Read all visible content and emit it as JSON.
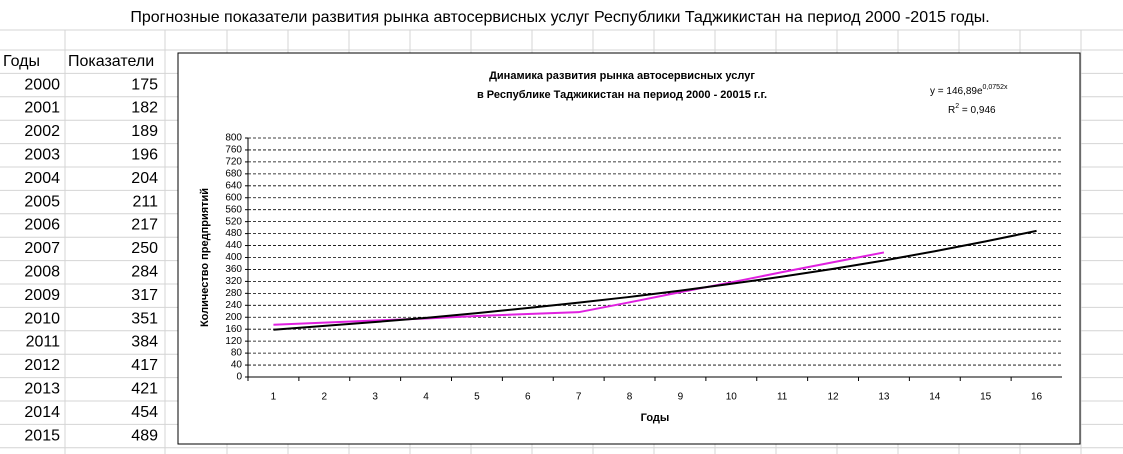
{
  "title": "Прогнозные показатели развития рынка автосервисных услуг Республики Таджикистан на период 2000 -2015 годы.",
  "table": {
    "headers": [
      "Годы",
      "Показатели"
    ],
    "rows": [
      [
        2000,
        175
      ],
      [
        2001,
        182
      ],
      [
        2002,
        189
      ],
      [
        2003,
        196
      ],
      [
        2004,
        204
      ],
      [
        2005,
        211
      ],
      [
        2006,
        217
      ],
      [
        2007,
        250
      ],
      [
        2008,
        284
      ],
      [
        2009,
        317
      ],
      [
        2010,
        351
      ],
      [
        2011,
        384
      ],
      [
        2012,
        417
      ],
      [
        2013,
        421
      ],
      [
        2014,
        454
      ],
      [
        2015,
        489
      ]
    ]
  },
  "chart_data": {
    "type": "line",
    "title": [
      "Динамика развития рынка автосервисных услуг",
      "в Республике Таджикистан на период 2000 - 20015 г.г."
    ],
    "x_label": "Годы",
    "y_label": "Количество предприятий",
    "trend_label": {
      "base": "y = 146,89e",
      "exponent": "0,0752x"
    },
    "r2_label": {
      "base": "R",
      "exponent": "2",
      "rest": " = 0,946"
    },
    "categories": [
      1,
      2,
      3,
      4,
      5,
      6,
      7,
      8,
      9,
      10,
      11,
      12,
      13,
      14,
      15,
      16
    ],
    "series": [
      {
        "color": "#e020e0",
        "values": [
          175,
          182,
          189,
          196,
          204,
          211,
          217,
          250,
          284,
          317,
          351,
          384,
          417,
          null,
          null,
          null
        ]
      },
      {
        "color": "#000000",
        "values": [
          158,
          171,
          184,
          198,
          214,
          231,
          249,
          268,
          289,
          312,
          336,
          362,
          390,
          421,
          454,
          489
        ]
      }
    ],
    "ylim": [
      0,
      800
    ],
    "yticks": [
      0,
      40,
      80,
      120,
      160,
      200,
      240,
      280,
      320,
      360,
      400,
      440,
      480,
      520,
      560,
      600,
      640,
      680,
      720,
      760,
      800
    ],
    "grid": true
  }
}
